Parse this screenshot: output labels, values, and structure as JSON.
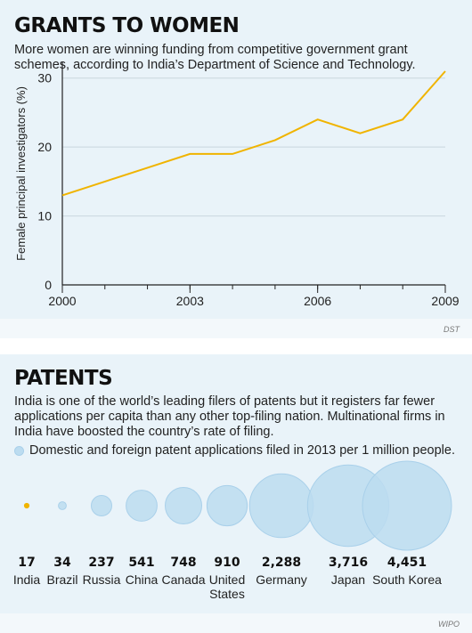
{
  "grants": {
    "title": "GRANTS TO WOMEN",
    "subtitle": "More women are winning funding from competitive government grant schemes, according to India’s Department of Science and Technology.",
    "source": "DST"
  },
  "patents": {
    "title": "PATENTS",
    "subtitle": "India is one of the world’s leading filers of patents but it registers far fewer applications per capita than any other top-filing nation. Multinational firms in India have boosted the country’s rate of filing.",
    "legend": "Domestic and foreign patent applications filed in 2013 per 1 million people.",
    "source": "WIPO"
  },
  "colors": {
    "panel_bg": "#e9f3f9",
    "line": "#f0b400",
    "bubble_fill": "#bcdcf0",
    "bubble_stroke": "#a9d0ea",
    "india_dot": "#f0b400"
  },
  "chart_data": [
    {
      "type": "line",
      "title": "GRANTS TO WOMEN",
      "ylabel": "Female principal investigators (%)",
      "xlabel": "",
      "x": [
        2000,
        2001,
        2002,
        2003,
        2004,
        2005,
        2006,
        2007,
        2008,
        2009
      ],
      "y": [
        13,
        15,
        17,
        19,
        19,
        21,
        24,
        22,
        24,
        31
      ],
      "xticks": [
        "2000",
        "2003",
        "2006",
        "2009"
      ],
      "yticks": [
        "0",
        "10",
        "20",
        "30"
      ],
      "xlim": [
        2000,
        2009
      ],
      "ylim": [
        0,
        31
      ],
      "grid": true
    },
    {
      "type": "scatter",
      "title": "PATENTS",
      "categories": [
        "India",
        "Brazil",
        "Russia",
        "China",
        "Canada",
        "United States",
        "Germany",
        "Japan",
        "South Korea"
      ],
      "value_labels": [
        "17",
        "34",
        "237",
        "541",
        "748",
        "910",
        "2,288",
        "3,716",
        "4,451"
      ],
      "values": [
        17,
        34,
        237,
        541,
        748,
        910,
        2288,
        3716,
        4451
      ]
    }
  ]
}
